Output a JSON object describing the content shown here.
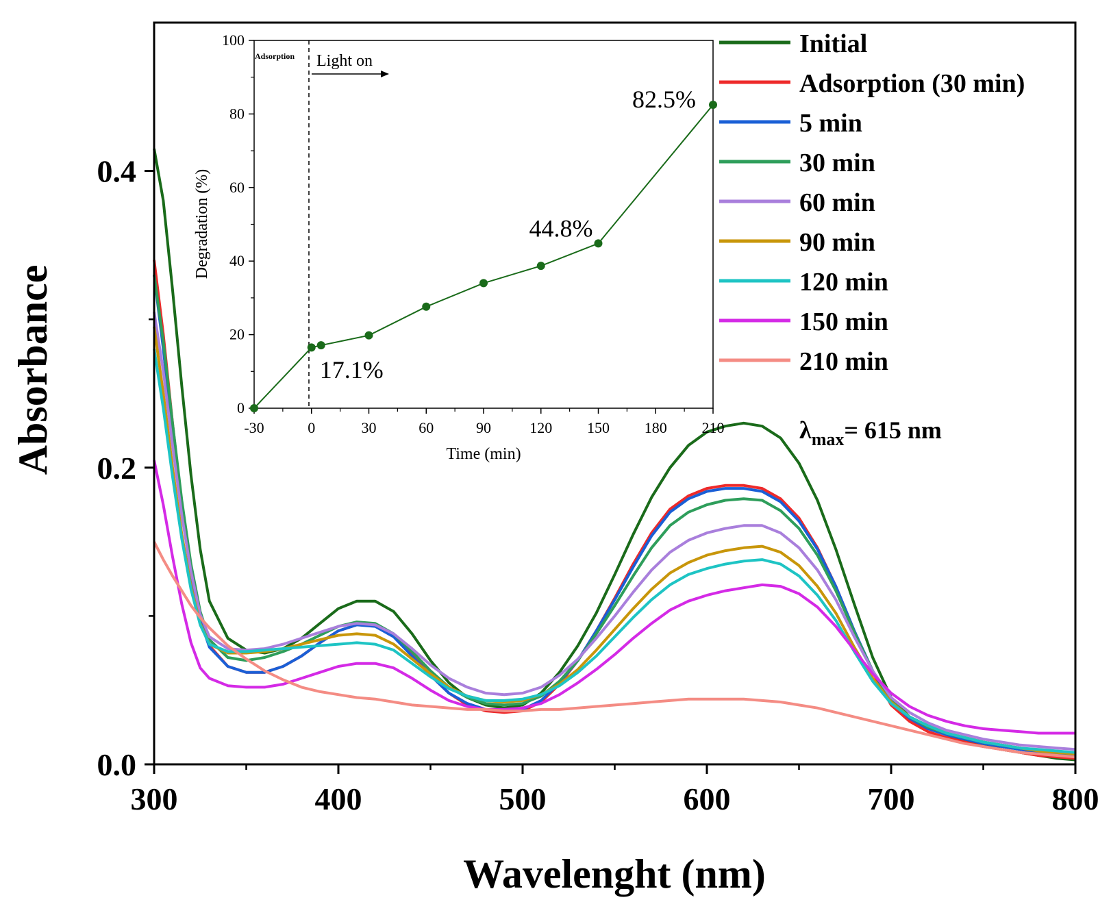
{
  "chart_data": [
    {
      "type": "line",
      "title": "",
      "xlabel": "Wavelenght (nm)",
      "ylabel": "Absorbance",
      "xlim": [
        300,
        800
      ],
      "ylim": [
        0,
        0.5
      ],
      "xticks": [
        "300",
        "400",
        "500",
        "600",
        "700",
        "800"
      ],
      "xtick_values": [
        300,
        400,
        500,
        600,
        700,
        800
      ],
      "yticks": [
        "0.0",
        "0.2",
        "0.4"
      ],
      "ytick_values": [
        0.0,
        0.2,
        0.4
      ],
      "annotation": {
        "lambda_symbol": "λ",
        "subscript": "max",
        "value": "= 615 nm"
      },
      "x": [
        300,
        305,
        310,
        315,
        320,
        325,
        330,
        340,
        350,
        360,
        370,
        380,
        390,
        400,
        410,
        420,
        430,
        440,
        450,
        460,
        470,
        480,
        490,
        500,
        510,
        520,
        530,
        540,
        550,
        560,
        570,
        580,
        590,
        600,
        610,
        620,
        630,
        640,
        650,
        660,
        670,
        680,
        690,
        700,
        710,
        720,
        730,
        740,
        750,
        760,
        770,
        780,
        790,
        800
      ],
      "series": [
        {
          "name": "Initial",
          "color": "#1a6b1a",
          "values": [
            0.415,
            0.38,
            0.32,
            0.255,
            0.195,
            0.145,
            0.11,
            0.085,
            0.077,
            0.075,
            0.078,
            0.085,
            0.095,
            0.105,
            0.11,
            0.11,
            0.103,
            0.088,
            0.07,
            0.055,
            0.045,
            0.04,
            0.038,
            0.04,
            0.048,
            0.062,
            0.08,
            0.102,
            0.128,
            0.155,
            0.18,
            0.2,
            0.215,
            0.224,
            0.228,
            0.23,
            0.228,
            0.22,
            0.203,
            0.178,
            0.145,
            0.108,
            0.072,
            0.045,
            0.032,
            0.025,
            0.02,
            0.016,
            0.013,
            0.01,
            0.008,
            0.006,
            0.004,
            0.003
          ]
        },
        {
          "name": "Adsorption (30 min)",
          "color": "#ee2a2a",
          "values": [
            0.34,
            0.29,
            0.23,
            0.175,
            0.13,
            0.098,
            0.08,
            0.066,
            0.062,
            0.062,
            0.066,
            0.073,
            0.082,
            0.09,
            0.094,
            0.094,
            0.087,
            0.074,
            0.06,
            0.048,
            0.04,
            0.036,
            0.035,
            0.036,
            0.042,
            0.054,
            0.07,
            0.09,
            0.112,
            0.135,
            0.156,
            0.172,
            0.181,
            0.186,
            0.188,
            0.188,
            0.186,
            0.179,
            0.166,
            0.146,
            0.12,
            0.09,
            0.062,
            0.04,
            0.029,
            0.022,
            0.018,
            0.015,
            0.012,
            0.01,
            0.008,
            0.006,
            0.005,
            0.004
          ]
        },
        {
          "name": "5 min",
          "color": "#1a5fd6",
          "values": [
            0.33,
            0.28,
            0.224,
            0.172,
            0.128,
            0.097,
            0.079,
            0.066,
            0.062,
            0.062,
            0.066,
            0.073,
            0.082,
            0.09,
            0.094,
            0.093,
            0.086,
            0.073,
            0.06,
            0.048,
            0.041,
            0.037,
            0.036,
            0.037,
            0.043,
            0.055,
            0.07,
            0.09,
            0.111,
            0.133,
            0.154,
            0.17,
            0.179,
            0.184,
            0.186,
            0.186,
            0.184,
            0.177,
            0.164,
            0.145,
            0.12,
            0.09,
            0.063,
            0.042,
            0.031,
            0.024,
            0.02,
            0.017,
            0.014,
            0.012,
            0.01,
            0.008,
            0.007,
            0.006
          ]
        },
        {
          "name": "30 min",
          "color": "#2e9e5b",
          "values": [
            0.33,
            0.285,
            0.23,
            0.178,
            0.135,
            0.103,
            0.084,
            0.072,
            0.07,
            0.072,
            0.076,
            0.081,
            0.087,
            0.093,
            0.096,
            0.095,
            0.088,
            0.076,
            0.063,
            0.052,
            0.045,
            0.041,
            0.04,
            0.041,
            0.046,
            0.056,
            0.07,
            0.088,
            0.107,
            0.127,
            0.146,
            0.161,
            0.17,
            0.175,
            0.178,
            0.179,
            0.178,
            0.171,
            0.159,
            0.141,
            0.117,
            0.089,
            0.063,
            0.043,
            0.032,
            0.025,
            0.021,
            0.018,
            0.015,
            0.013,
            0.011,
            0.009,
            0.008,
            0.007
          ]
        },
        {
          "name": "60 min",
          "color": "#a97fdc",
          "values": [
            0.305,
            0.265,
            0.215,
            0.168,
            0.13,
            0.101,
            0.086,
            0.078,
            0.077,
            0.078,
            0.081,
            0.085,
            0.089,
            0.093,
            0.095,
            0.094,
            0.088,
            0.078,
            0.067,
            0.058,
            0.052,
            0.048,
            0.047,
            0.048,
            0.052,
            0.06,
            0.071,
            0.085,
            0.1,
            0.116,
            0.131,
            0.143,
            0.151,
            0.156,
            0.159,
            0.161,
            0.161,
            0.156,
            0.146,
            0.131,
            0.111,
            0.086,
            0.063,
            0.045,
            0.035,
            0.028,
            0.023,
            0.02,
            0.017,
            0.015,
            0.013,
            0.012,
            0.011,
            0.01
          ]
        },
        {
          "name": "90 min",
          "color": "#c8960a",
          "values": [
            0.295,
            0.25,
            0.2,
            0.155,
            0.12,
            0.095,
            0.081,
            0.075,
            0.075,
            0.076,
            0.078,
            0.081,
            0.084,
            0.087,
            0.088,
            0.087,
            0.081,
            0.071,
            0.061,
            0.052,
            0.046,
            0.043,
            0.042,
            0.043,
            0.047,
            0.054,
            0.064,
            0.077,
            0.091,
            0.105,
            0.118,
            0.129,
            0.136,
            0.141,
            0.144,
            0.146,
            0.147,
            0.143,
            0.134,
            0.12,
            0.102,
            0.079,
            0.058,
            0.042,
            0.032,
            0.026,
            0.021,
            0.018,
            0.015,
            0.013,
            0.011,
            0.009,
            0.008,
            0.007
          ]
        },
        {
          "name": "120 min",
          "color": "#1ec4c4",
          "values": [
            0.28,
            0.24,
            0.194,
            0.152,
            0.118,
            0.094,
            0.081,
            0.076,
            0.076,
            0.077,
            0.078,
            0.079,
            0.08,
            0.081,
            0.082,
            0.081,
            0.077,
            0.068,
            0.059,
            0.051,
            0.046,
            0.043,
            0.043,
            0.044,
            0.047,
            0.053,
            0.062,
            0.073,
            0.086,
            0.099,
            0.111,
            0.121,
            0.128,
            0.132,
            0.135,
            0.137,
            0.138,
            0.135,
            0.127,
            0.114,
            0.097,
            0.076,
            0.056,
            0.041,
            0.032,
            0.026,
            0.021,
            0.018,
            0.015,
            0.013,
            0.011,
            0.01,
            0.009,
            0.008
          ]
        },
        {
          "name": "150 min",
          "color": "#d42ae6",
          "values": [
            0.205,
            0.175,
            0.14,
            0.108,
            0.082,
            0.065,
            0.058,
            0.053,
            0.052,
            0.052,
            0.054,
            0.058,
            0.062,
            0.066,
            0.068,
            0.068,
            0.065,
            0.058,
            0.05,
            0.043,
            0.039,
            0.037,
            0.037,
            0.038,
            0.041,
            0.047,
            0.055,
            0.064,
            0.074,
            0.085,
            0.095,
            0.104,
            0.11,
            0.114,
            0.117,
            0.119,
            0.121,
            0.12,
            0.115,
            0.106,
            0.093,
            0.077,
            0.061,
            0.048,
            0.039,
            0.033,
            0.029,
            0.026,
            0.024,
            0.023,
            0.022,
            0.021,
            0.021,
            0.021
          ]
        },
        {
          "name": "210 min",
          "color": "#f48c84",
          "values": [
            0.15,
            0.138,
            0.127,
            0.117,
            0.107,
            0.099,
            0.092,
            0.08,
            0.071,
            0.063,
            0.057,
            0.052,
            0.049,
            0.047,
            0.045,
            0.044,
            0.042,
            0.04,
            0.039,
            0.038,
            0.037,
            0.037,
            0.036,
            0.036,
            0.037,
            0.037,
            0.038,
            0.039,
            0.04,
            0.041,
            0.042,
            0.043,
            0.044,
            0.044,
            0.044,
            0.044,
            0.043,
            0.042,
            0.04,
            0.038,
            0.035,
            0.032,
            0.029,
            0.026,
            0.023,
            0.02,
            0.017,
            0.014,
            0.012,
            0.01,
            0.008,
            0.007,
            0.006,
            0.005
          ]
        }
      ]
    },
    {
      "type": "line",
      "title": "",
      "xlabel": "Time (min)",
      "ylabel": "Degradation (%)",
      "xlim": [
        -30,
        210
      ],
      "ylim": [
        0,
        100
      ],
      "xticks": [
        "-30",
        "0",
        "30",
        "60",
        "90",
        "120",
        "150",
        "180",
        "210"
      ],
      "xtick_values": [
        -30,
        0,
        30,
        60,
        90,
        120,
        150,
        180,
        210
      ],
      "yticks": [
        "0",
        "20",
        "40",
        "60",
        "80",
        "100"
      ],
      "ytick_values": [
        0,
        20,
        40,
        60,
        80,
        100
      ],
      "color": "#1a6b1a",
      "x": [
        -30,
        0,
        5,
        30,
        60,
        90,
        120,
        150,
        210
      ],
      "values": [
        0,
        16.5,
        17.1,
        19.8,
        27.6,
        34.0,
        38.7,
        44.8,
        82.5
      ],
      "annotations": [
        {
          "text": "17.1%",
          "x": 5,
          "y": 17.1,
          "side": "below-right"
        },
        {
          "text": "44.8%",
          "x": 150,
          "y": 44.8,
          "side": "above-left"
        },
        {
          "text": "82.5%",
          "x": 210,
          "y": 82.5,
          "side": "left"
        }
      ],
      "phase_labels": {
        "adsorption": "Adsorption",
        "light_on": "Light on"
      }
    }
  ]
}
